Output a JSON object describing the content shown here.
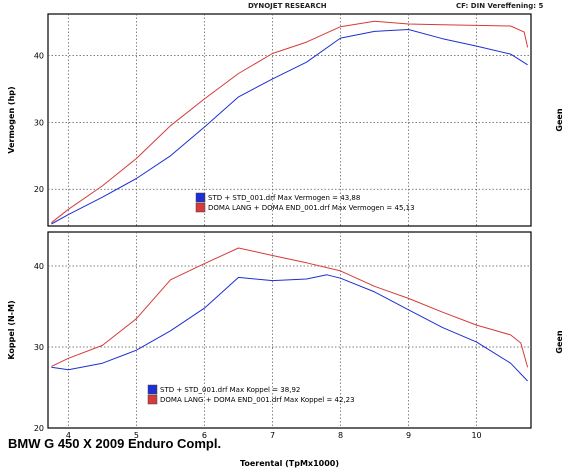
{
  "header": {
    "title": "DYNOJET RESEARCH",
    "correction": "CF: DIN  Vereffening: 5"
  },
  "caption": "BMW G 450 X 2009 Enduro Compl.",
  "colors": {
    "std": "#1f2fd0",
    "doma": "#d63a3a",
    "grid": "#555555",
    "frame": "#000000"
  },
  "chart_data": [
    {
      "type": "line",
      "ylabel": "Vermogen (hp)",
      "right_label": "Geen",
      "xlim": [
        3.7,
        10.8
      ],
      "ylim": [
        14.5,
        46.2
      ],
      "xticks": [
        4,
        5,
        6,
        7,
        8,
        9,
        10
      ],
      "yticks": [
        20,
        30,
        40
      ],
      "grid": true,
      "legend": "bottom-center",
      "legend_entries": [
        "STD + STD_001.drf Max Vermogen = 43,88",
        "DOMA LANG + DOMA END_001.drf Max Vermogen = 45,13"
      ],
      "series": [
        {
          "color_key": "std",
          "x": [
            3.75,
            4.0,
            4.5,
            5.0,
            5.5,
            6.0,
            6.5,
            7.0,
            7.5,
            8.0,
            8.5,
            9.0,
            9.5,
            10.0,
            10.5,
            10.75
          ],
          "values": [
            14.8,
            16.2,
            18.8,
            21.6,
            25.0,
            29.3,
            33.8,
            36.5,
            39.0,
            42.6,
            43.6,
            43.88,
            42.5,
            41.4,
            40.2,
            38.6
          ]
        },
        {
          "color_key": "doma",
          "x": [
            3.75,
            4.0,
            4.5,
            5.0,
            5.5,
            6.0,
            6.5,
            7.0,
            7.5,
            8.0,
            8.5,
            9.0,
            9.5,
            10.0,
            10.5,
            10.7,
            10.75
          ],
          "values": [
            15.0,
            17.0,
            20.5,
            24.6,
            29.5,
            33.5,
            37.3,
            40.3,
            42.0,
            44.3,
            45.13,
            44.7,
            44.6,
            44.5,
            44.4,
            43.5,
            41.2
          ]
        }
      ]
    },
    {
      "type": "line",
      "ylabel": "Koppel (N-M)",
      "xlabel": "Toerental (TpMx1000)",
      "right_label": "Geen",
      "xlim": [
        3.7,
        10.8
      ],
      "ylim": [
        20,
        44.2
      ],
      "xticks": [
        4,
        5,
        6,
        7,
        8,
        9,
        10
      ],
      "yticks": [
        20,
        30,
        40
      ],
      "grid": true,
      "legend": "bottom-center",
      "legend_entries": [
        "STD + STD_001.drf Max Koppel = 38,92",
        "DOMA LANG + DOMA END_001.drf Max Koppel = 42,23"
      ],
      "series": [
        {
          "color_key": "std",
          "x": [
            3.75,
            4.0,
            4.5,
            5.0,
            5.5,
            6.0,
            6.5,
            7.0,
            7.5,
            7.8,
            8.0,
            8.5,
            9.0,
            9.5,
            10.0,
            10.5,
            10.75
          ],
          "values": [
            27.5,
            27.2,
            28.0,
            29.6,
            32.0,
            34.8,
            38.6,
            38.2,
            38.4,
            38.92,
            38.5,
            36.8,
            34.6,
            32.4,
            30.6,
            28.0,
            25.8
          ]
        },
        {
          "color_key": "doma",
          "x": [
            3.75,
            4.0,
            4.5,
            5.0,
            5.5,
            6.0,
            6.5,
            7.0,
            7.5,
            8.0,
            8.5,
            9.0,
            9.5,
            10.0,
            10.5,
            10.65,
            10.75
          ],
          "values": [
            27.6,
            28.6,
            30.2,
            33.5,
            38.3,
            40.3,
            42.23,
            41.3,
            40.4,
            39.4,
            37.5,
            36.0,
            34.3,
            32.7,
            31.5,
            30.5,
            27.5
          ]
        }
      ]
    }
  ]
}
